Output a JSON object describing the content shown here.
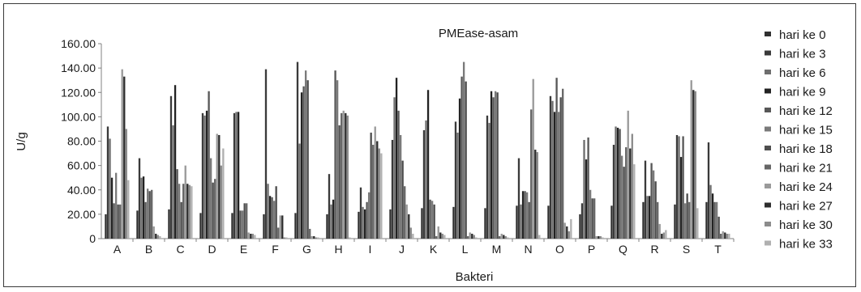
{
  "chart_data": {
    "type": "bar",
    "title": "PMEase-asam",
    "xlabel": "Bakteri",
    "ylabel": "U/g",
    "ylim": [
      0,
      160
    ],
    "yticks": [
      "0",
      "20.00",
      "40.00",
      "60.00",
      "80.00",
      "100.00",
      "120.00",
      "140.00",
      "160.00"
    ],
    "grid": false,
    "legend_position": "right",
    "categories": [
      "A",
      "B",
      "C",
      "D",
      "E",
      "F",
      "G",
      "H",
      "I",
      "J",
      "K",
      "L",
      "M",
      "N",
      "O",
      "P",
      "Q",
      "R",
      "S",
      "T"
    ],
    "series": [
      {
        "name": "hari ke 0",
        "color": "#303030",
        "values": [
          20,
          23,
          24,
          21,
          21,
          20,
          21,
          20,
          22,
          24,
          25,
          26,
          25,
          27,
          27,
          20,
          27,
          30,
          28,
          30
        ]
      },
      {
        "name": "hari ke 3",
        "color": "#3a3a3a",
        "values": [
          92,
          66,
          117,
          103,
          103,
          139,
          145,
          53,
          42,
          81,
          89,
          96,
          101,
          66,
          117,
          29,
          77,
          64,
          85,
          79
        ]
      },
      {
        "name": "hari ke 6",
        "color": "#6e6e6e",
        "values": [
          82,
          50,
          93,
          101,
          104,
          45,
          78,
          28,
          26,
          116,
          97,
          87,
          95,
          28,
          113,
          81,
          92,
          35,
          84,
          44
        ]
      },
      {
        "name": "hari ke 9",
        "color": "#222222",
        "values": [
          50,
          51,
          126,
          105,
          104,
          35,
          120,
          32,
          24,
          132,
          122,
          115,
          121,
          39,
          104,
          65,
          91,
          35,
          67,
          37
        ]
      },
      {
        "name": "hari ke 12",
        "color": "#575757",
        "values": [
          29,
          30,
          57,
          121,
          23,
          34,
          125,
          138,
          30,
          105,
          32,
          133,
          116,
          39,
          132,
          83,
          90,
          62,
          84,
          30
        ]
      },
      {
        "name": "hari ke 15",
        "color": "#7a7a7a",
        "values": [
          54,
          41,
          45,
          66,
          23,
          31,
          138,
          130,
          38,
          85,
          31,
          145,
          121,
          38,
          104,
          40,
          68,
          56,
          29,
          30
        ]
      },
      {
        "name": "hari ke 18",
        "color": "#4e4e4e",
        "values": [
          28,
          39,
          30,
          46,
          29,
          43,
          130,
          93,
          87,
          64,
          28,
          129,
          120,
          30,
          116,
          33,
          59,
          47,
          37,
          18
        ]
      },
      {
        "name": "hari ke 21",
        "color": "#666666",
        "values": [
          28,
          40,
          45,
          49,
          29,
          9,
          8,
          103,
          77,
          43,
          2,
          2,
          2,
          106,
          123,
          33,
          75,
          30,
          30,
          4
        ]
      },
      {
        "name": "hari ke 24",
        "color": "#9a9a9a",
        "values": [
          139,
          10,
          60,
          86,
          5,
          19,
          2,
          105,
          92,
          28,
          10,
          5,
          4,
          131,
          13,
          2,
          105,
          12,
          130,
          6
        ]
      },
      {
        "name": "hari ke 27",
        "color": "#2e2e2e",
        "values": [
          133,
          4,
          45,
          85,
          4,
          19,
          2,
          103,
          80,
          20,
          5,
          4,
          3,
          73,
          10,
          2,
          74,
          4,
          122,
          5
        ]
      },
      {
        "name": "hari ke 30",
        "color": "#8c8c8c",
        "values": [
          90,
          3,
          44,
          60,
          4,
          1,
          1,
          101,
          74,
          9,
          4,
          3,
          2,
          71,
          6,
          2,
          86,
          5,
          121,
          4
        ]
      },
      {
        "name": "hari ke 33",
        "color": "#b0b0b0",
        "values": [
          48,
          2,
          43,
          74,
          3,
          1,
          1,
          1,
          70,
          4,
          3,
          1,
          1,
          3,
          16,
          1,
          61,
          7,
          25,
          4
        ]
      }
    ]
  }
}
